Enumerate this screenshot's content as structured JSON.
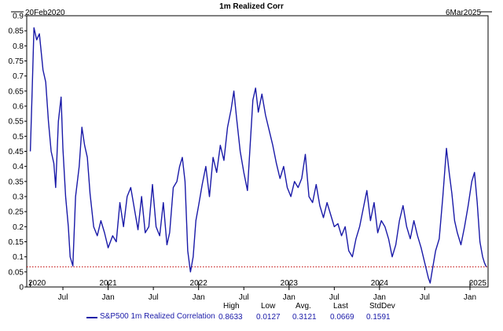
{
  "chart_data": {
    "type": "line",
    "title": "1m Realized Corr",
    "start_label": "20Feb2020",
    "end_label": "6Mar2025",
    "ylim": [
      0,
      0.9
    ],
    "yticks": [
      "0",
      "0.05",
      "0.1",
      "0.15",
      "0.2",
      "0.25",
      "0.3",
      "0.35",
      "0.4",
      "0.45",
      "0.5",
      "0.55",
      "0.6",
      "0.65",
      "0.7",
      "0.75",
      "0.8",
      "0.85",
      "0.9"
    ],
    "x_month_ticks": [
      {
        "t": 2020.5,
        "label": "Jul"
      },
      {
        "t": 2021.0,
        "label": "Jan"
      },
      {
        "t": 2021.5,
        "label": "Jul"
      },
      {
        "t": 2022.0,
        "label": "Jan"
      },
      {
        "t": 2022.5,
        "label": "Jul"
      },
      {
        "t": 2023.0,
        "label": "Jan"
      },
      {
        "t": 2023.5,
        "label": "Jul"
      },
      {
        "t": 2024.0,
        "label": "Jan"
      },
      {
        "t": 2024.5,
        "label": "Jul"
      },
      {
        "t": 2025.0,
        "label": "Jan"
      }
    ],
    "x_year_ticks": [
      {
        "t": 2020.14,
        "label": "2020"
      },
      {
        "t": 2021.0,
        "label": "2021"
      },
      {
        "t": 2022.0,
        "label": "2022"
      },
      {
        "t": 2023.0,
        "label": "2023"
      },
      {
        "t": 2024.0,
        "label": "2024"
      },
      {
        "t": 2025.0,
        "label": "2025"
      }
    ],
    "reference_line": 0.0669,
    "series": [
      {
        "name": "S&P500 1m Realized Correlation",
        "color": "#1a1aa8",
        "points": [
          [
            2020.14,
            0.45
          ],
          [
            2020.16,
            0.65
          ],
          [
            2020.18,
            0.86
          ],
          [
            2020.21,
            0.82
          ],
          [
            2020.24,
            0.84
          ],
          [
            2020.28,
            0.72
          ],
          [
            2020.31,
            0.68
          ],
          [
            2020.34,
            0.55
          ],
          [
            2020.37,
            0.45
          ],
          [
            2020.4,
            0.41
          ],
          [
            2020.42,
            0.33
          ],
          [
            2020.45,
            0.55
          ],
          [
            2020.48,
            0.63
          ],
          [
            2020.5,
            0.46
          ],
          [
            2020.53,
            0.3
          ],
          [
            2020.56,
            0.2
          ],
          [
            2020.58,
            0.1
          ],
          [
            2020.61,
            0.07
          ],
          [
            2020.64,
            0.3
          ],
          [
            2020.68,
            0.4
          ],
          [
            2020.71,
            0.53
          ],
          [
            2020.74,
            0.47
          ],
          [
            2020.77,
            0.43
          ],
          [
            2020.8,
            0.31
          ],
          [
            2020.84,
            0.2
          ],
          [
            2020.88,
            0.17
          ],
          [
            2020.92,
            0.22
          ],
          [
            2020.96,
            0.18
          ],
          [
            2021.0,
            0.13
          ],
          [
            2021.05,
            0.17
          ],
          [
            2021.09,
            0.15
          ],
          [
            2021.13,
            0.28
          ],
          [
            2021.17,
            0.2
          ],
          [
            2021.21,
            0.3
          ],
          [
            2021.25,
            0.33
          ],
          [
            2021.29,
            0.26
          ],
          [
            2021.33,
            0.19
          ],
          [
            2021.37,
            0.3
          ],
          [
            2021.41,
            0.18
          ],
          [
            2021.45,
            0.2
          ],
          [
            2021.49,
            0.34
          ],
          [
            2021.53,
            0.2
          ],
          [
            2021.57,
            0.17
          ],
          [
            2021.61,
            0.28
          ],
          [
            2021.65,
            0.14
          ],
          [
            2021.68,
            0.18
          ],
          [
            2021.72,
            0.33
          ],
          [
            2021.76,
            0.35
          ],
          [
            2021.79,
            0.4
          ],
          [
            2021.82,
            0.43
          ],
          [
            2021.85,
            0.35
          ],
          [
            2021.88,
            0.12
          ],
          [
            2021.91,
            0.05
          ],
          [
            2021.94,
            0.1
          ],
          [
            2021.97,
            0.22
          ],
          [
            2022.0,
            0.27
          ],
          [
            2022.04,
            0.34
          ],
          [
            2022.08,
            0.4
          ],
          [
            2022.12,
            0.3
          ],
          [
            2022.16,
            0.43
          ],
          [
            2022.2,
            0.38
          ],
          [
            2022.24,
            0.47
          ],
          [
            2022.28,
            0.42
          ],
          [
            2022.32,
            0.53
          ],
          [
            2022.36,
            0.59
          ],
          [
            2022.39,
            0.65
          ],
          [
            2022.42,
            0.56
          ],
          [
            2022.46,
            0.45
          ],
          [
            2022.5,
            0.38
          ],
          [
            2022.54,
            0.32
          ],
          [
            2022.57,
            0.47
          ],
          [
            2022.6,
            0.62
          ],
          [
            2022.63,
            0.66
          ],
          [
            2022.66,
            0.58
          ],
          [
            2022.7,
            0.64
          ],
          [
            2022.74,
            0.57
          ],
          [
            2022.78,
            0.52
          ],
          [
            2022.82,
            0.47
          ],
          [
            2022.86,
            0.41
          ],
          [
            2022.9,
            0.36
          ],
          [
            2022.94,
            0.4
          ],
          [
            2022.98,
            0.33
          ],
          [
            2023.02,
            0.3
          ],
          [
            2023.06,
            0.35
          ],
          [
            2023.1,
            0.33
          ],
          [
            2023.14,
            0.36
          ],
          [
            2023.18,
            0.44
          ],
          [
            2023.22,
            0.3
          ],
          [
            2023.26,
            0.28
          ],
          [
            2023.3,
            0.34
          ],
          [
            2023.34,
            0.27
          ],
          [
            2023.38,
            0.23
          ],
          [
            2023.42,
            0.28
          ],
          [
            2023.46,
            0.24
          ],
          [
            2023.5,
            0.2
          ],
          [
            2023.54,
            0.21
          ],
          [
            2023.58,
            0.17
          ],
          [
            2023.62,
            0.2
          ],
          [
            2023.66,
            0.12
          ],
          [
            2023.7,
            0.1
          ],
          [
            2023.74,
            0.16
          ],
          [
            2023.78,
            0.2
          ],
          [
            2023.82,
            0.26
          ],
          [
            2023.86,
            0.32
          ],
          [
            2023.9,
            0.22
          ],
          [
            2023.94,
            0.28
          ],
          [
            2023.98,
            0.18
          ],
          [
            2024.02,
            0.22
          ],
          [
            2024.06,
            0.2
          ],
          [
            2024.1,
            0.16
          ],
          [
            2024.14,
            0.1
          ],
          [
            2024.18,
            0.14
          ],
          [
            2024.22,
            0.22
          ],
          [
            2024.26,
            0.27
          ],
          [
            2024.3,
            0.2
          ],
          [
            2024.34,
            0.16
          ],
          [
            2024.38,
            0.22
          ],
          [
            2024.42,
            0.17
          ],
          [
            2024.46,
            0.13
          ],
          [
            2024.5,
            0.08
          ],
          [
            2024.54,
            0.03
          ],
          [
            2024.56,
            0.013
          ],
          [
            2024.58,
            0.05
          ],
          [
            2024.62,
            0.12
          ],
          [
            2024.66,
            0.16
          ],
          [
            2024.7,
            0.3
          ],
          [
            2024.74,
            0.46
          ],
          [
            2024.77,
            0.38
          ],
          [
            2024.8,
            0.31
          ],
          [
            2024.83,
            0.22
          ],
          [
            2024.86,
            0.18
          ],
          [
            2024.9,
            0.14
          ],
          [
            2024.94,
            0.2
          ],
          [
            2024.98,
            0.27
          ],
          [
            2025.02,
            0.35
          ],
          [
            2025.05,
            0.38
          ],
          [
            2025.08,
            0.28
          ],
          [
            2025.11,
            0.15
          ],
          [
            2025.14,
            0.1
          ],
          [
            2025.16,
            0.08
          ],
          [
            2025.18,
            0.067
          ]
        ]
      }
    ],
    "stats": {
      "headers": [
        "High",
        "Low",
        "Avg.",
        "Last",
        "StdDev"
      ],
      "values": [
        "0.8633",
        "0.0127",
        "0.3121",
        "0.0669",
        "0.1591"
      ]
    }
  }
}
